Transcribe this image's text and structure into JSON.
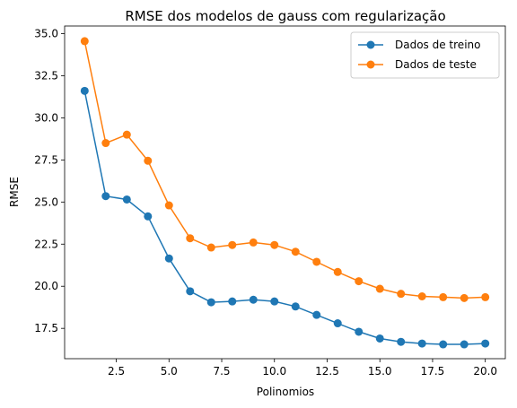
{
  "chart_data": {
    "type": "line",
    "title": "RMSE dos modelos de gauss com regularização",
    "xlabel": "Polinomios",
    "ylabel": "RMSE",
    "xlim": [
      0.05,
      20.95
    ],
    "ylim": [
      15.7,
      35.45
    ],
    "xticks": [
      2.5,
      5.0,
      7.5,
      10.0,
      12.5,
      15.0,
      17.5,
      20.0
    ],
    "xtick_labels": [
      "2.5",
      "5.0",
      "7.5",
      "10.0",
      "12.5",
      "15.0",
      "17.5",
      "20.0"
    ],
    "yticks": [
      17.5,
      20.0,
      22.5,
      25.0,
      27.5,
      30.0,
      32.5,
      35.0
    ],
    "ytick_labels": [
      "17.5",
      "20.0",
      "22.5",
      "25.0",
      "27.5",
      "30.0",
      "32.5",
      "35.0"
    ],
    "grid": false,
    "legend_position": "top-right",
    "x": [
      1,
      2,
      3,
      4,
      5,
      6,
      7,
      8,
      9,
      10,
      11,
      12,
      13,
      14,
      15,
      16,
      17,
      18,
      19,
      20
    ],
    "series": [
      {
        "name": "Dados de treino",
        "color": "#1f77b4",
        "values": [
          31.6,
          25.35,
          25.15,
          24.15,
          21.65,
          19.7,
          19.05,
          19.1,
          19.2,
          19.1,
          18.8,
          18.3,
          17.8,
          17.3,
          16.9,
          16.7,
          16.6,
          16.55,
          16.55,
          16.6
        ]
      },
      {
        "name": "Dados de teste",
        "color": "#ff7f0e",
        "values": [
          34.55,
          28.5,
          29.0,
          27.45,
          24.8,
          22.85,
          22.3,
          22.45,
          22.6,
          22.45,
          22.05,
          21.45,
          20.85,
          20.3,
          19.85,
          19.55,
          19.4,
          19.35,
          19.3,
          19.35
        ]
      }
    ]
  }
}
